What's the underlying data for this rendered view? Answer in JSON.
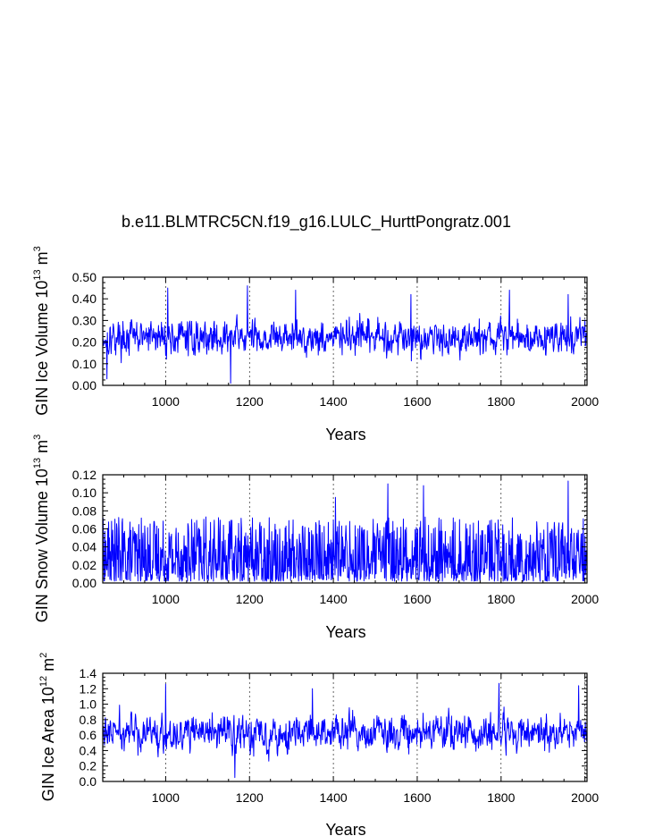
{
  "page_title": "b.e11.BLMTRC5CN.f19_g16.LULC_HurttPongratz.001",
  "style": {
    "series_color": "#0000ff",
    "axis_color": "#000000",
    "background": "#ffffff"
  },
  "chart_data": [
    {
      "type": "line",
      "id": "ice_volume",
      "title": "b.e11.BLMTRC5CN.f19_g16.LULC_HurttPongratz.001",
      "xlabel": "Years",
      "ylabel_main": "GIN Ice Volume 10",
      "ylabel_sup1": "13",
      "ylabel_mid": " m",
      "ylabel_sup2": "3",
      "xlim": [
        850,
        2005
      ],
      "ylim": [
        0,
        0.5
      ],
      "xticks": [
        1000,
        1200,
        1400,
        1600,
        1800,
        2000
      ],
      "xtick_labels": [
        "1000",
        "1200",
        "1400",
        "1600",
        "1800",
        "2000"
      ],
      "yticks": [
        0,
        0.1,
        0.2,
        0.3,
        0.4,
        0.5
      ],
      "ytick_labels": [
        "0.00",
        "0.10",
        "0.20",
        "0.30",
        "0.40",
        "0.50"
      ],
      "grid": "vertical dashed at x ticks",
      "series": [
        {
          "name": "GIN Ice Volume",
          "mean": 0.21,
          "typical_min": 0.06,
          "typical_max": 0.38,
          "peaks": [
            {
              "x": 1005,
              "y": 0.45
            },
            {
              "x": 1195,
              "y": 0.46
            },
            {
              "x": 1310,
              "y": 0.44
            },
            {
              "x": 1585,
              "y": 0.42
            },
            {
              "x": 1820,
              "y": 0.44
            },
            {
              "x": 1960,
              "y": 0.42
            }
          ],
          "troughs": [
            {
              "x": 1155,
              "y": 0.01
            },
            {
              "x": 860,
              "y": 0.03
            }
          ]
        }
      ]
    },
    {
      "type": "line",
      "id": "snow_volume",
      "title": "",
      "xlabel": "Years",
      "ylabel_main": "GIN Snow Volume 10",
      "ylabel_sup1": "13",
      "ylabel_mid": " m",
      "ylabel_sup2": "3",
      "xlim": [
        850,
        2005
      ],
      "ylim": [
        0,
        0.12
      ],
      "xticks": [
        1000,
        1200,
        1400,
        1600,
        1800,
        2000
      ],
      "xtick_labels": [
        "1000",
        "1200",
        "1400",
        "1600",
        "1800",
        "2000"
      ],
      "yticks": [
        0,
        0.02,
        0.04,
        0.06,
        0.08,
        0.1,
        0.12
      ],
      "ytick_labels": [
        "0.00",
        "0.02",
        "0.04",
        "0.06",
        "0.08",
        "0.10",
        "0.12"
      ],
      "grid": "vertical dashed at x ticks",
      "series": [
        {
          "name": "GIN Snow Volume",
          "mean": 0.03,
          "typical_min": 0.002,
          "typical_max": 0.07,
          "peaks": [
            {
              "x": 1530,
              "y": 0.11
            },
            {
              "x": 1615,
              "y": 0.108
            },
            {
              "x": 1960,
              "y": 0.113
            },
            {
              "x": 1405,
              "y": 0.095
            }
          ],
          "troughs": []
        }
      ]
    },
    {
      "type": "line",
      "id": "ice_area",
      "title": "",
      "xlabel": "Years",
      "ylabel_main": "GIN Ice Area 10",
      "ylabel_sup1": "12",
      "ylabel_mid": " m",
      "ylabel_sup2": "2",
      "xlim": [
        850,
        2005
      ],
      "ylim": [
        0,
        1.4
      ],
      "xticks": [
        1000,
        1200,
        1400,
        1600,
        1800,
        2000
      ],
      "xtick_labels": [
        "1000",
        "1200",
        "1400",
        "1600",
        "1800",
        "2000"
      ],
      "yticks": [
        0,
        0.2,
        0.4,
        0.6,
        0.8,
        1.0,
        1.2,
        1.4
      ],
      "ytick_labels": [
        "0.0",
        "0.2",
        "0.4",
        "0.6",
        "0.8",
        "1.0",
        "1.2",
        "1.4"
      ],
      "grid": "vertical dashed at x ticks",
      "series": [
        {
          "name": "GIN Ice Area",
          "mean": 0.62,
          "typical_min": 0.15,
          "typical_max": 1.1,
          "peaks": [
            {
              "x": 1000,
              "y": 1.26
            },
            {
              "x": 1795,
              "y": 1.27
            },
            {
              "x": 1985,
              "y": 1.24
            },
            {
              "x": 1350,
              "y": 1.2
            }
          ],
          "troughs": [
            {
              "x": 1165,
              "y": 0.05
            }
          ]
        }
      ]
    }
  ]
}
